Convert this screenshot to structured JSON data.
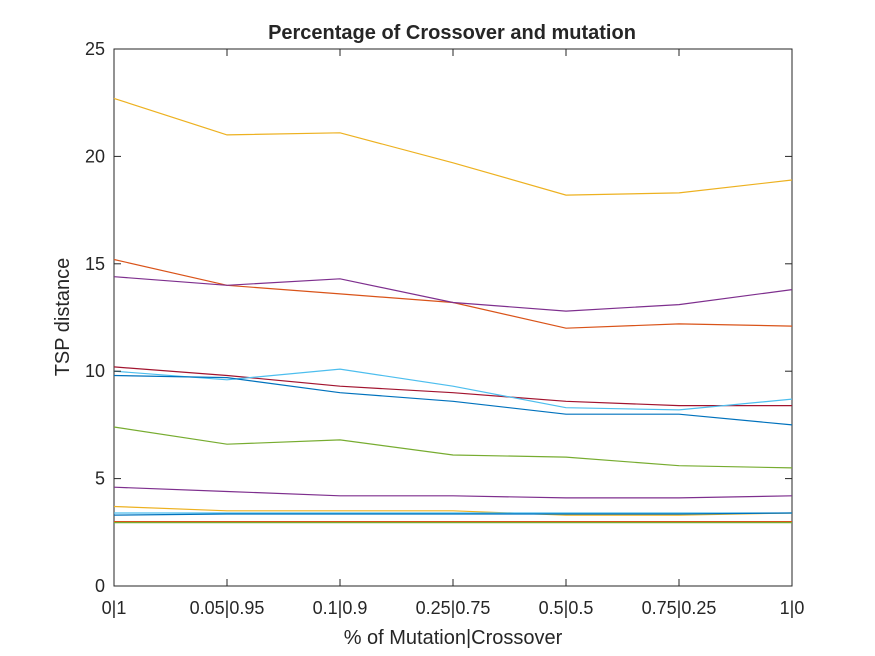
{
  "chart_data": {
    "type": "line",
    "title": "Percentage of Crossover and mutation",
    "xlabel": "% of Mutation|Crossover",
    "ylabel": "TSP distance",
    "categories": [
      "0|1",
      "0.05|0.95",
      "0.1|0.9",
      "0.25|0.75",
      "0.5|0.5",
      "0.75|0.25",
      "1|0"
    ],
    "ylim": [
      0,
      25
    ],
    "yticks": [
      "0",
      "5",
      "10",
      "15",
      "20",
      "25"
    ],
    "grid": false,
    "series": [
      {
        "color": "#EDB120",
        "values": [
          22.7,
          21.0,
          21.1,
          19.7,
          18.2,
          18.3,
          18.9
        ]
      },
      {
        "color": "#D95319",
        "values": [
          15.2,
          14.0,
          13.6,
          13.2,
          12.0,
          12.2,
          12.1
        ]
      },
      {
        "color": "#7E2F8E",
        "values": [
          14.4,
          14.0,
          14.3,
          13.2,
          12.8,
          13.1,
          13.8
        ]
      },
      {
        "color": "#A2142F",
        "values": [
          10.2,
          9.8,
          9.3,
          9.0,
          8.6,
          8.4,
          8.4
        ]
      },
      {
        "color": "#4DBEEE",
        "values": [
          10.0,
          9.6,
          10.1,
          9.3,
          8.3,
          8.2,
          8.7
        ]
      },
      {
        "color": "#0072BD",
        "values": [
          9.8,
          9.7,
          9.0,
          8.6,
          8.0,
          8.0,
          7.5
        ]
      },
      {
        "color": "#77AC30",
        "values": [
          7.4,
          6.6,
          6.8,
          6.1,
          6.0,
          5.6,
          5.5
        ]
      },
      {
        "color": "#7E2F8E",
        "values": [
          4.6,
          4.4,
          4.2,
          4.2,
          4.1,
          4.1,
          4.2
        ]
      },
      {
        "color": "#EDB120",
        "values": [
          3.7,
          3.5,
          3.5,
          3.5,
          3.3,
          3.3,
          3.4
        ]
      },
      {
        "color": "#4DBEEE",
        "values": [
          3.4,
          3.4,
          3.4,
          3.4,
          3.4,
          3.4,
          3.4
        ]
      },
      {
        "color": "#0072BD",
        "values": [
          3.3,
          3.35,
          3.35,
          3.35,
          3.35,
          3.35,
          3.4
        ]
      },
      {
        "color": "#D95319",
        "values": [
          3.0,
          3.0,
          3.0,
          3.0,
          3.0,
          3.0,
          3.0
        ]
      },
      {
        "color": "#77AC30",
        "values": [
          2.95,
          2.95,
          2.95,
          2.95,
          2.95,
          2.95,
          2.95
        ]
      }
    ]
  }
}
